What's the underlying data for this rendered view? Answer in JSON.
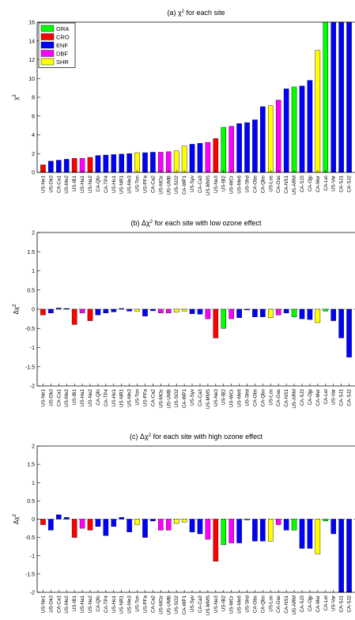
{
  "chart_data": [
    {
      "type": "bar",
      "title": "(a) χ² for each site",
      "ylabel": "χ²",
      "ylim": [
        0,
        16
      ],
      "yticks": [
        0,
        2,
        4,
        6,
        8,
        10,
        12,
        14,
        16
      ],
      "legend": {
        "placement": "top-left",
        "entries": [
          {
            "name": "GRA",
            "color": "#00ff00"
          },
          {
            "name": "CRO",
            "color": "#ff0000"
          },
          {
            "name": "ENF",
            "color": "#0000ff"
          },
          {
            "name": "DBF",
            "color": "#ff00ff"
          },
          {
            "name": "SHR",
            "color": "#ffff00"
          }
        ]
      },
      "categories": [
        "US-Ne1",
        "US-Dk3",
        "CA-Ca1",
        "US-Me2",
        "US-IB1",
        "US-Ha1",
        "US-Ne2",
        "CA-Qfo",
        "CA-TP4",
        "US-Ho1",
        "US-NR1",
        "US-Me3",
        "US-Ton",
        "US-PFa",
        "CA-Ca2",
        "US-MOz",
        "US-UMB",
        "US-SO2",
        "CA-WP1",
        "US-Syv",
        "CA-Ca3",
        "US-MMS",
        "US-Ne3",
        "US-IB2",
        "US-WCr",
        "US-Me6",
        "US-Shd",
        "CA-Obs",
        "CA-Qbo",
        "US-Los",
        "CA-Oas",
        "CA-NS1",
        "US-ARM",
        "CA-SJ3",
        "CA-Ojp",
        "CA-Mer",
        "CA-Let",
        "US-Var",
        "CA-SJ1",
        "CA-SJ2"
      ],
      "values": [
        0.8,
        1.2,
        1.3,
        1.4,
        1.5,
        1.5,
        1.6,
        1.8,
        1.85,
        1.9,
        1.95,
        2.0,
        2.1,
        2.1,
        2.15,
        2.15,
        2.2,
        2.3,
        2.8,
        3.0,
        3.1,
        3.2,
        3.6,
        4.8,
        4.9,
        5.2,
        5.3,
        5.6,
        7.0,
        7.1,
        7.7,
        8.9,
        9.1,
        9.2,
        9.8,
        13.0,
        16,
        16,
        16,
        16
      ],
      "colors": [
        "#ff0000",
        "#0000ff",
        "#0000ff",
        "#0000ff",
        "#ff0000",
        "#ff00ff",
        "#ff0000",
        "#0000ff",
        "#0000ff",
        "#0000ff",
        "#0000ff",
        "#0000ff",
        "#ffff00",
        "#0000ff",
        "#0000ff",
        "#ff00ff",
        "#ff00ff",
        "#ffff00",
        "#ffff00",
        "#0000ff",
        "#0000ff",
        "#ff00ff",
        "#ff0000",
        "#00ff00",
        "#ff00ff",
        "#0000ff",
        "#0000ff",
        "#0000ff",
        "#0000ff",
        "#ffff00",
        "#ff00ff",
        "#0000ff",
        "#00ff00",
        "#0000ff",
        "#0000ff",
        "#ffff00",
        "#00ff00",
        "#0000ff",
        "#0000ff",
        "#0000ff"
      ]
    },
    {
      "type": "bar",
      "title": "(b) Δχ² for each site with low ozone effect",
      "ylabel": "Δχ²",
      "ylim": [
        -2,
        2
      ],
      "yticks": [
        -2,
        -1.5,
        -1,
        -0.5,
        0,
        0.5,
        1,
        1.5,
        2
      ],
      "categories": [
        "US-Ne1",
        "US-Dk3",
        "CA-Ca1",
        "US-Me2",
        "US-IB1",
        "US-Ha1",
        "US-Ne2",
        "CA-Qfo",
        "CA-TP4",
        "US-Ho1",
        "US-NR1",
        "US-Me3",
        "US-Ton",
        "US-PFa",
        "CA-Ca2",
        "US-MOz",
        "US-UMB",
        "US-SO2",
        "CA-WP1",
        "US-Syv",
        "CA-Ca3",
        "US-MMS",
        "US-Ne3",
        "US-IB2",
        "US-WCr",
        "US-Me6",
        "US-Shd",
        "CA-Obs",
        "CA-Qbo",
        "US-Los",
        "CA-Oas",
        "CA-NS1",
        "US-ARM",
        "CA-SJ3",
        "CA-Ojp",
        "CA-Mer",
        "CA-Let",
        "US-Var",
        "CA-SJ1",
        "CA-SJ2"
      ],
      "values": [
        -0.15,
        -0.1,
        0.03,
        0.02,
        -0.4,
        -0.1,
        -0.3,
        -0.15,
        -0.1,
        -0.07,
        0.02,
        -0.05,
        -0.05,
        -0.18,
        -0.04,
        -0.1,
        -0.1,
        -0.08,
        -0.05,
        -0.12,
        -0.13,
        -0.25,
        -0.75,
        -0.5,
        -0.25,
        -0.22,
        -0.02,
        -0.2,
        -0.2,
        -0.22,
        -0.15,
        -0.1,
        -0.2,
        -0.25,
        -0.27,
        -0.35,
        -0.05,
        -0.3,
        -0.75,
        -1.25
      ],
      "colors": [
        "#ff0000",
        "#0000ff",
        "#0000ff",
        "#0000ff",
        "#ff0000",
        "#ff00ff",
        "#ff0000",
        "#0000ff",
        "#0000ff",
        "#0000ff",
        "#0000ff",
        "#0000ff",
        "#ffff00",
        "#0000ff",
        "#0000ff",
        "#ff00ff",
        "#ff00ff",
        "#ffff00",
        "#ffff00",
        "#0000ff",
        "#0000ff",
        "#ff00ff",
        "#ff0000",
        "#00ff00",
        "#ff00ff",
        "#0000ff",
        "#0000ff",
        "#0000ff",
        "#0000ff",
        "#ffff00",
        "#ff00ff",
        "#0000ff",
        "#00ff00",
        "#0000ff",
        "#0000ff",
        "#ffff00",
        "#00ff00",
        "#0000ff",
        "#0000ff",
        "#0000ff"
      ]
    },
    {
      "type": "bar",
      "title": "(c) Δχ² for each site with high ozone effect",
      "ylabel": "Δχ²",
      "ylim": [
        -2,
        2
      ],
      "yticks": [
        -2,
        -1.5,
        -1,
        -0.5,
        0,
        0.5,
        1,
        1.5,
        2
      ],
      "categories": [
        "US-Ne1",
        "US-Dk3",
        "CA-Ca1",
        "US-Me2",
        "US-IB1",
        "US-Ha1",
        "US-Ne2",
        "CA-Qfo",
        "CA-TP4",
        "US-Ho1",
        "US-NR1",
        "US-Me3",
        "US-Ton",
        "US-PFa",
        "CA-Ca2",
        "US-MOz",
        "US-UMB",
        "US-SO2",
        "CA-WP1",
        "US-Syv",
        "CA-Ca3",
        "US-MMS",
        "US-Ne3",
        "US-IB2",
        "US-WCr",
        "US-Me6",
        "US-Shd",
        "CA-Obs",
        "CA-Qbo",
        "US-Los",
        "CA-Oas",
        "CA-NS1",
        "US-ARM",
        "CA-SJ3",
        "CA-Ojp",
        "CA-Mer",
        "CA-Let",
        "US-Var",
        "CA-SJ1",
        "CA-SJ2"
      ],
      "values": [
        -0.15,
        -0.3,
        0.12,
        0.05,
        -0.5,
        -0.25,
        -0.3,
        -0.2,
        -0.45,
        -0.2,
        0.05,
        -0.35,
        -0.15,
        -0.5,
        -0.05,
        -0.3,
        -0.3,
        -0.12,
        -0.08,
        -0.35,
        -0.4,
        -0.55,
        -1.15,
        -0.7,
        -0.65,
        -0.65,
        -0.02,
        -0.6,
        -0.6,
        -0.6,
        -0.15,
        -0.3,
        -0.3,
        -0.8,
        -0.8,
        -0.95,
        -0.05,
        -0.4,
        -2,
        -2
      ],
      "colors": [
        "#ff0000",
        "#0000ff",
        "#0000ff",
        "#0000ff",
        "#ff0000",
        "#ff00ff",
        "#ff0000",
        "#0000ff",
        "#0000ff",
        "#0000ff",
        "#0000ff",
        "#0000ff",
        "#ffff00",
        "#0000ff",
        "#0000ff",
        "#ff00ff",
        "#ff00ff",
        "#ffff00",
        "#ffff00",
        "#0000ff",
        "#0000ff",
        "#ff00ff",
        "#ff0000",
        "#00ff00",
        "#ff00ff",
        "#0000ff",
        "#0000ff",
        "#0000ff",
        "#0000ff",
        "#ffff00",
        "#ff00ff",
        "#0000ff",
        "#00ff00",
        "#0000ff",
        "#0000ff",
        "#ffff00",
        "#00ff00",
        "#0000ff",
        "#0000ff",
        "#0000ff"
      ]
    }
  ]
}
